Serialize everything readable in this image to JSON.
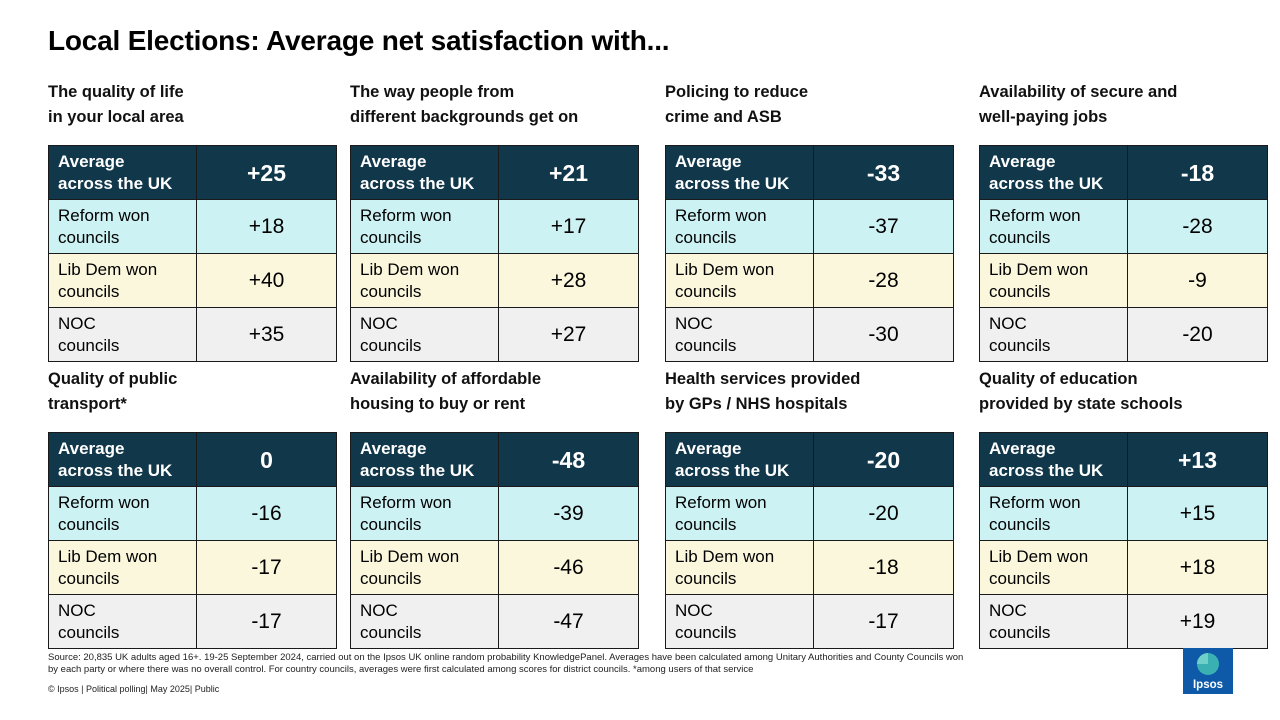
{
  "title": "Local Elections: Average net satisfaction with...",
  "row_labels": {
    "average": [
      "Average",
      "across the UK"
    ],
    "reform": [
      "Reform won",
      "councils"
    ],
    "libdem": [
      "Lib Dem won",
      "councils"
    ],
    "noc": [
      "NOC",
      "councils"
    ]
  },
  "colors": {
    "average_bg": "#11374a",
    "reform_bg": "#cdf2f4",
    "libdem_bg": "#fbf7dc",
    "noc_bg": "#f0f0f0",
    "logo_bg": "#0e5aa8"
  },
  "panels": [
    {
      "title": [
        "The quality of life",
        "in your local area"
      ],
      "average": "+25",
      "reform": "+18",
      "libdem": "+40",
      "noc": "+35"
    },
    {
      "title": [
        "The way people from",
        "different backgrounds get on"
      ],
      "average": "+21",
      "reform": "+17",
      "libdem": "+28",
      "noc": "+27"
    },
    {
      "title": [
        "Policing to reduce",
        "crime and ASB"
      ],
      "average": "-33",
      "reform": "-37",
      "libdem": "-28",
      "noc": "-30"
    },
    {
      "title": [
        "Availability of secure and",
        "well-paying jobs"
      ],
      "average": "-18",
      "reform": "-28",
      "libdem": "-9",
      "noc": "-20"
    },
    {
      "title": [
        "Quality of public",
        "transport*"
      ],
      "average": "0",
      "reform": "-16",
      "libdem": "-17",
      "noc": "-17"
    },
    {
      "title": [
        "Availability of affordable",
        "housing to buy or rent"
      ],
      "average": "-48",
      "reform": "-39",
      "libdem": "-46",
      "noc": "-47"
    },
    {
      "title": [
        "Health services provided",
        "by GPs / NHS hospitals"
      ],
      "average": "-20",
      "reform": "-20",
      "libdem": "-18",
      "noc": "-17"
    },
    {
      "title": [
        "Quality of education",
        "provided by state schools"
      ],
      "average": "+13",
      "reform": "+15",
      "libdem": "+18",
      "noc": "+19"
    }
  ],
  "footer": {
    "source_line1": "Source: 20,835 UK adults aged 16+. 19-25 September 2024, carried out on the Ipsos UK online random probability KnowledgePanel.  Averages have been calculated among Unitary Authorities and County Councils won",
    "source_line2": "by each party or where there was no overall control. For country councils, averages were first calculated among scores for district councils. *among users of that service",
    "copyright": "© Ipsos | Political polling| May 2025| Public"
  },
  "logo": {
    "text": "Ipsos",
    "icon": "ipsos-logo-icon"
  }
}
